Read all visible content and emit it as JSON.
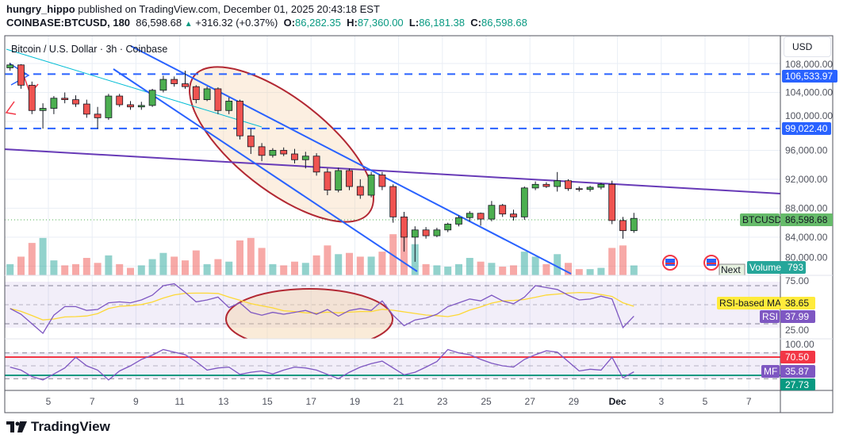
{
  "header": {
    "author": "hungry_hippo",
    "published": "published on TradingView.com, December 01, 2025 20:43:18 EST",
    "symbol": "COINBASE:BTCUSD, 180",
    "last": "86,598.68",
    "change": "+316.32 (+0.37%)",
    "o_label": "O:",
    "o": "86,282.35",
    "h_label": "H:",
    "h": "87,360.00",
    "l_label": "L:",
    "l": "86,181.38",
    "c_label": "C:",
    "c": "86,598.68"
  },
  "legend_title": "Bitcoin / U.S. Dollar · 3h · Coinbase",
  "currency_button": "USD",
  "price_axis": [
    "108,000.00",
    "104,000.00",
    "100,000.00",
    "96,000.00",
    "92,000.00",
    "88,000.00",
    "84,000.00",
    "80,000.00"
  ],
  "badges": {
    "level_high": "106,533.97",
    "level_low": "99,022.40",
    "symbol_label": "BTCUSD",
    "symbol_price": "86,598.68",
    "volume_label": "Volume",
    "volume_value": "793",
    "next_tooltip": "Next",
    "rsi_ma_label": "RSI-based MA",
    "rsi_ma_value": "38.65",
    "rsi_label": "RSI",
    "rsi_value": "37.99",
    "rsi_upper": "75.00",
    "rsi_lower": "25.00",
    "mf_top": "100.00",
    "mf_overbought": "70.50",
    "mf_label": "MF",
    "mf_value": "35.87",
    "mf_oversold": "27.73"
  },
  "time_axis": [
    "5",
    "7",
    "9",
    "11",
    "13",
    "15",
    "17",
    "19",
    "21",
    "23",
    "25",
    "27",
    "29",
    "Dec",
    "3",
    "5",
    "7"
  ],
  "colors": {
    "up": "#4caf50",
    "down": "#ef5350",
    "level": "#2962ff",
    "trend": "#7e57c2",
    "rsi": "#7e57c2",
    "rsi_ma": "#fdd835",
    "mf_ob": "#f23645",
    "mf_os": "#089981",
    "ellipse": "#b22833"
  },
  "icons": [
    "economic-event-flag-icon",
    "economic-event-flag-icon",
    "tradingview-logo-icon"
  ],
  "brand": "TradingView",
  "chart_data": {
    "type": "candlestick",
    "interval": "12h resampled approximation of 3h bars",
    "start": "Nov 3",
    "end": "Dec 1",
    "ylim": [
      80000,
      108000
    ],
    "ohlc": [
      [
        107400,
        108100,
        107000,
        107800
      ],
      [
        107800,
        107900,
        104500,
        105000
      ],
      [
        105000,
        105500,
        101000,
        101500
      ],
      [
        101500,
        102500,
        99000,
        101800
      ],
      [
        101800,
        103500,
        101000,
        103200
      ],
      [
        103200,
        104000,
        102500,
        103000
      ],
      [
        103000,
        103600,
        102000,
        102400
      ],
      [
        102400,
        103000,
        100500,
        101000
      ],
      [
        101000,
        102000,
        99000,
        100500
      ],
      [
        100500,
        103800,
        100200,
        103500
      ],
      [
        103500,
        103800,
        102000,
        102300
      ],
      [
        102300,
        102800,
        101600,
        102000
      ],
      [
        102000,
        102700,
        101600,
        102200
      ],
      [
        102200,
        104500,
        102000,
        104300
      ],
      [
        104300,
        106300,
        104000,
        105800
      ],
      [
        105800,
        106200,
        104800,
        105200
      ],
      [
        105200,
        107000,
        104500,
        104800
      ],
      [
        104800,
        105000,
        102500,
        103000
      ],
      [
        103000,
        104800,
        102800,
        104500
      ],
      [
        104500,
        104700,
        101000,
        101500
      ],
      [
        101500,
        103300,
        101000,
        102800
      ],
      [
        102800,
        103000,
        97500,
        98000
      ],
      [
        98000,
        99000,
        95500,
        96500
      ],
      [
        96500,
        97000,
        94500,
        95300
      ],
      [
        95300,
        96300,
        95000,
        96000
      ],
      [
        96000,
        96400,
        95200,
        95500
      ],
      [
        95500,
        96200,
        94200,
        94700
      ],
      [
        94700,
        95800,
        93500,
        95200
      ],
      [
        95200,
        95600,
        92500,
        93000
      ],
      [
        93000,
        93500,
        89800,
        90500
      ],
      [
        90500,
        93600,
        90200,
        93200
      ],
      [
        93200,
        93500,
        90500,
        91000
      ],
      [
        91000,
        92000,
        89300,
        89800
      ],
      [
        89800,
        93000,
        89500,
        92600
      ],
      [
        92600,
        93000,
        90500,
        91000
      ],
      [
        91000,
        91300,
        86000,
        86800
      ],
      [
        86800,
        87500,
        82000,
        84000
      ],
      [
        84000,
        85500,
        80600,
        85000
      ],
      [
        85000,
        85400,
        83800,
        84200
      ],
      [
        84200,
        85300,
        84000,
        85000
      ],
      [
        85000,
        86000,
        84700,
        85800
      ],
      [
        85800,
        87000,
        85500,
        86700
      ],
      [
        86700,
        87600,
        86200,
        87300
      ],
      [
        87300,
        87400,
        85600,
        86500
      ],
      [
        86500,
        89000,
        86200,
        88400
      ],
      [
        88400,
        88600,
        86800,
        87200
      ],
      [
        87200,
        87800,
        86300,
        86800
      ],
      [
        86800,
        91000,
        86400,
        90800
      ],
      [
        90800,
        91700,
        90500,
        91300
      ],
      [
        91300,
        91600,
        90800,
        91000
      ],
      [
        91000,
        93000,
        90300,
        91800
      ],
      [
        91800,
        92000,
        90400,
        90700
      ],
      [
        90700,
        91000,
        90300,
        90600
      ],
      [
        90600,
        91100,
        90300,
        90900
      ],
      [
        90900,
        91500,
        90600,
        91300
      ],
      [
        91300,
        91800,
        85800,
        86300
      ],
      [
        86300,
        86800,
        83800,
        84900
      ],
      [
        84900,
        87360,
        84600,
        86598.68
      ]
    ],
    "volume": [
      900,
      1500,
      2600,
      3000,
      1200,
      800,
      900,
      1400,
      1000,
      1600,
      900,
      600,
      800,
      1300,
      1800,
      1500,
      1200,
      2000,
      900,
      1300,
      1100,
      2800,
      3000,
      2200,
      900,
      800,
      1100,
      1000,
      1600,
      2400,
      1700,
      1800,
      1500,
      1500,
      1900,
      3300,
      3500,
      2500,
      900,
      800,
      700,
      900,
      1400,
      1100,
      1000,
      700,
      800,
      1900,
      1500,
      900,
      1700,
      1000,
      500,
      500,
      600,
      2200,
      2400,
      793
    ],
    "rsi": [
      46,
      40,
      30,
      20,
      39,
      48,
      48,
      44,
      45,
      52,
      53,
      52,
      55,
      60,
      70,
      72,
      63,
      53,
      55,
      58,
      47,
      52,
      42,
      39,
      42,
      40,
      42,
      44,
      40,
      45,
      38,
      44,
      46,
      44,
      54,
      39,
      28,
      34,
      36,
      40,
      48,
      52,
      56,
      54,
      60,
      54,
      51,
      58,
      70,
      68,
      66,
      60,
      55,
      56,
      59,
      56,
      26,
      37.99
    ],
    "rsi_bands": [
      70,
      50,
      30
    ],
    "mf": [
      47,
      40,
      25,
      17,
      31,
      45,
      70,
      50,
      40,
      17,
      38,
      50,
      65,
      75,
      88,
      82,
      76,
      60,
      40,
      45,
      47,
      30,
      35,
      38,
      31,
      40,
      47,
      45,
      40,
      30,
      20,
      35,
      47,
      55,
      61,
      45,
      29,
      35,
      47,
      60,
      88,
      80,
      76,
      65,
      56,
      50,
      47,
      65,
      76,
      85,
      82,
      60,
      38,
      42,
      40,
      70,
      22,
      35.87
    ],
    "mf_bands": [
      80,
      50,
      20
    ],
    "mf_levels": [
      70.5,
      27.73
    ],
    "horizontal_levels": [
      106533.97,
      99022.4
    ]
  }
}
